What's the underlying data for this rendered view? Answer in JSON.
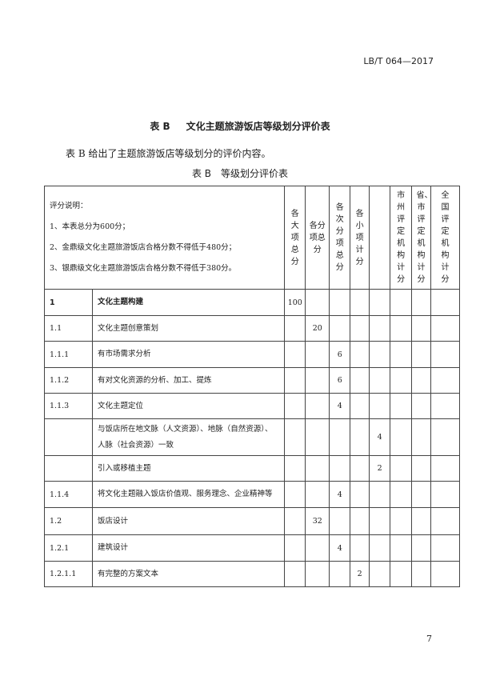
{
  "header": {
    "standard_no": "LB/T 064—2017"
  },
  "appendix_title": {
    "label": "表 B",
    "text": "文化主题旅游饭店等级划分评价表"
  },
  "intro": "表 B 给出了主题旅游饭店等级划分的评价内容。",
  "table_title": {
    "label": "表 B",
    "text": "等级划分评价表"
  },
  "table": {
    "notes": [
      "评分说明：",
      "1、本表总分为600分；",
      "2、金鼎级文化主题旅游饭店合格分数不得低于480分；",
      "3、银鼎级文化主题旅游饭店合格分数不得低于380分。"
    ],
    "columns": [
      "各大项总分",
      "各分项总分",
      "各次分项总分",
      "各小项计分",
      "",
      "市州评定机构计分",
      "省、市评定机构计分",
      "全国评定机构计分"
    ],
    "rows": [
      {
        "code": "1",
        "item": "文化主题构建",
        "vals": [
          "100",
          "",
          "",
          "",
          "",
          "",
          "",
          ""
        ],
        "bold": true
      },
      {
        "code": "1.1",
        "item": "文化主题创意策划",
        "vals": [
          "",
          "20",
          "",
          "",
          "",
          "",
          "",
          ""
        ]
      },
      {
        "code": "1.1.1",
        "item": "有市场需求分析",
        "vals": [
          "",
          "",
          "6",
          "",
          "",
          "",
          "",
          ""
        ]
      },
      {
        "code": "1.1.2",
        "item": "有对文化资源的分析、加工、提炼",
        "vals": [
          "",
          "",
          "6",
          "",
          "",
          "",
          "",
          ""
        ]
      },
      {
        "code": "1.1.3",
        "item": "文化主题定位",
        "vals": [
          "",
          "",
          "4",
          "",
          "",
          "",
          "",
          ""
        ]
      },
      {
        "code": "",
        "item": "与饭店所在地文脉（人文资源）、地脉（自然资源）、人脉（社会资源）一致",
        "vals": [
          "",
          "",
          "",
          "",
          "4",
          "",
          "",
          ""
        ]
      },
      {
        "code": "",
        "item": "引入或移植主题",
        "vals": [
          "",
          "",
          "",
          "",
          "2",
          "",
          "",
          ""
        ]
      },
      {
        "code": "1.1.4",
        "item": "将文化主题融入饭店价值观、服务理念、企业精神等",
        "vals": [
          "",
          "",
          "4",
          "",
          "",
          "",
          "",
          ""
        ]
      },
      {
        "code": "1.2",
        "item": "饭店设计",
        "vals": [
          "",
          "32",
          "",
          "",
          "",
          "",
          "",
          ""
        ]
      },
      {
        "code": "1.2.1",
        "item": "建筑设计",
        "vals": [
          "",
          "",
          "4",
          "",
          "",
          "",
          "",
          ""
        ]
      },
      {
        "code": "1.2.1.1",
        "item": "有完整的方案文本",
        "vals": [
          "",
          "",
          "",
          "2",
          "",
          "",
          "",
          ""
        ]
      }
    ]
  },
  "page_number": "7"
}
